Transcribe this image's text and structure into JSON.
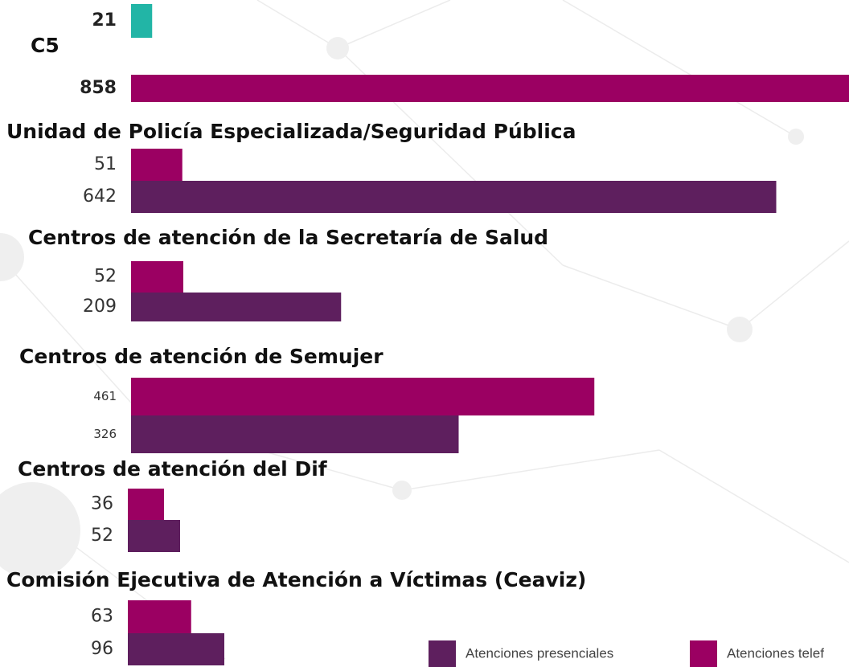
{
  "chart_data": {
    "type": "bar",
    "groups": [
      {
        "label": "C5",
        "bars": [
          {
            "value": 21,
            "color": "#22b5a6"
          },
          {
            "value": 858,
            "color": "#9b0062"
          }
        ]
      },
      {
        "label": "Unidad de Policía Especializada/Seguridad Pública",
        "bars": [
          {
            "value": 51,
            "color": "#9b0062"
          },
          {
            "value": 642,
            "color": "#5e1f5e"
          }
        ]
      },
      {
        "label": "Centros de atención de la Secretaría de Salud",
        "bars": [
          {
            "value": 52,
            "color": "#9b0062"
          },
          {
            "value": 209,
            "color": "#5e1f5e"
          }
        ]
      },
      {
        "label": "Centros de atención de Semujer",
        "bars": [
          {
            "value": 461,
            "color": "#9b0062"
          },
          {
            "value": 326,
            "color": "#5e1f5e"
          }
        ]
      },
      {
        "label": "Centros de atención del Dif",
        "bars": [
          {
            "value": 36,
            "color": "#9b0062"
          },
          {
            "value": 52,
            "color": "#5e1f5e"
          }
        ]
      },
      {
        "label": "Comisión Ejecutiva de Atención a Víctimas (Ceaviz)",
        "bars": [
          {
            "value": 63,
            "color": "#9b0062"
          },
          {
            "value": 96,
            "color": "#5e1f5e"
          }
        ]
      }
    ],
    "legend": [
      {
        "name": "Atenciones presenciales",
        "color": "#5e1f5e"
      },
      {
        "name": "Atenciones telef",
        "color": "#9b0062"
      }
    ]
  }
}
